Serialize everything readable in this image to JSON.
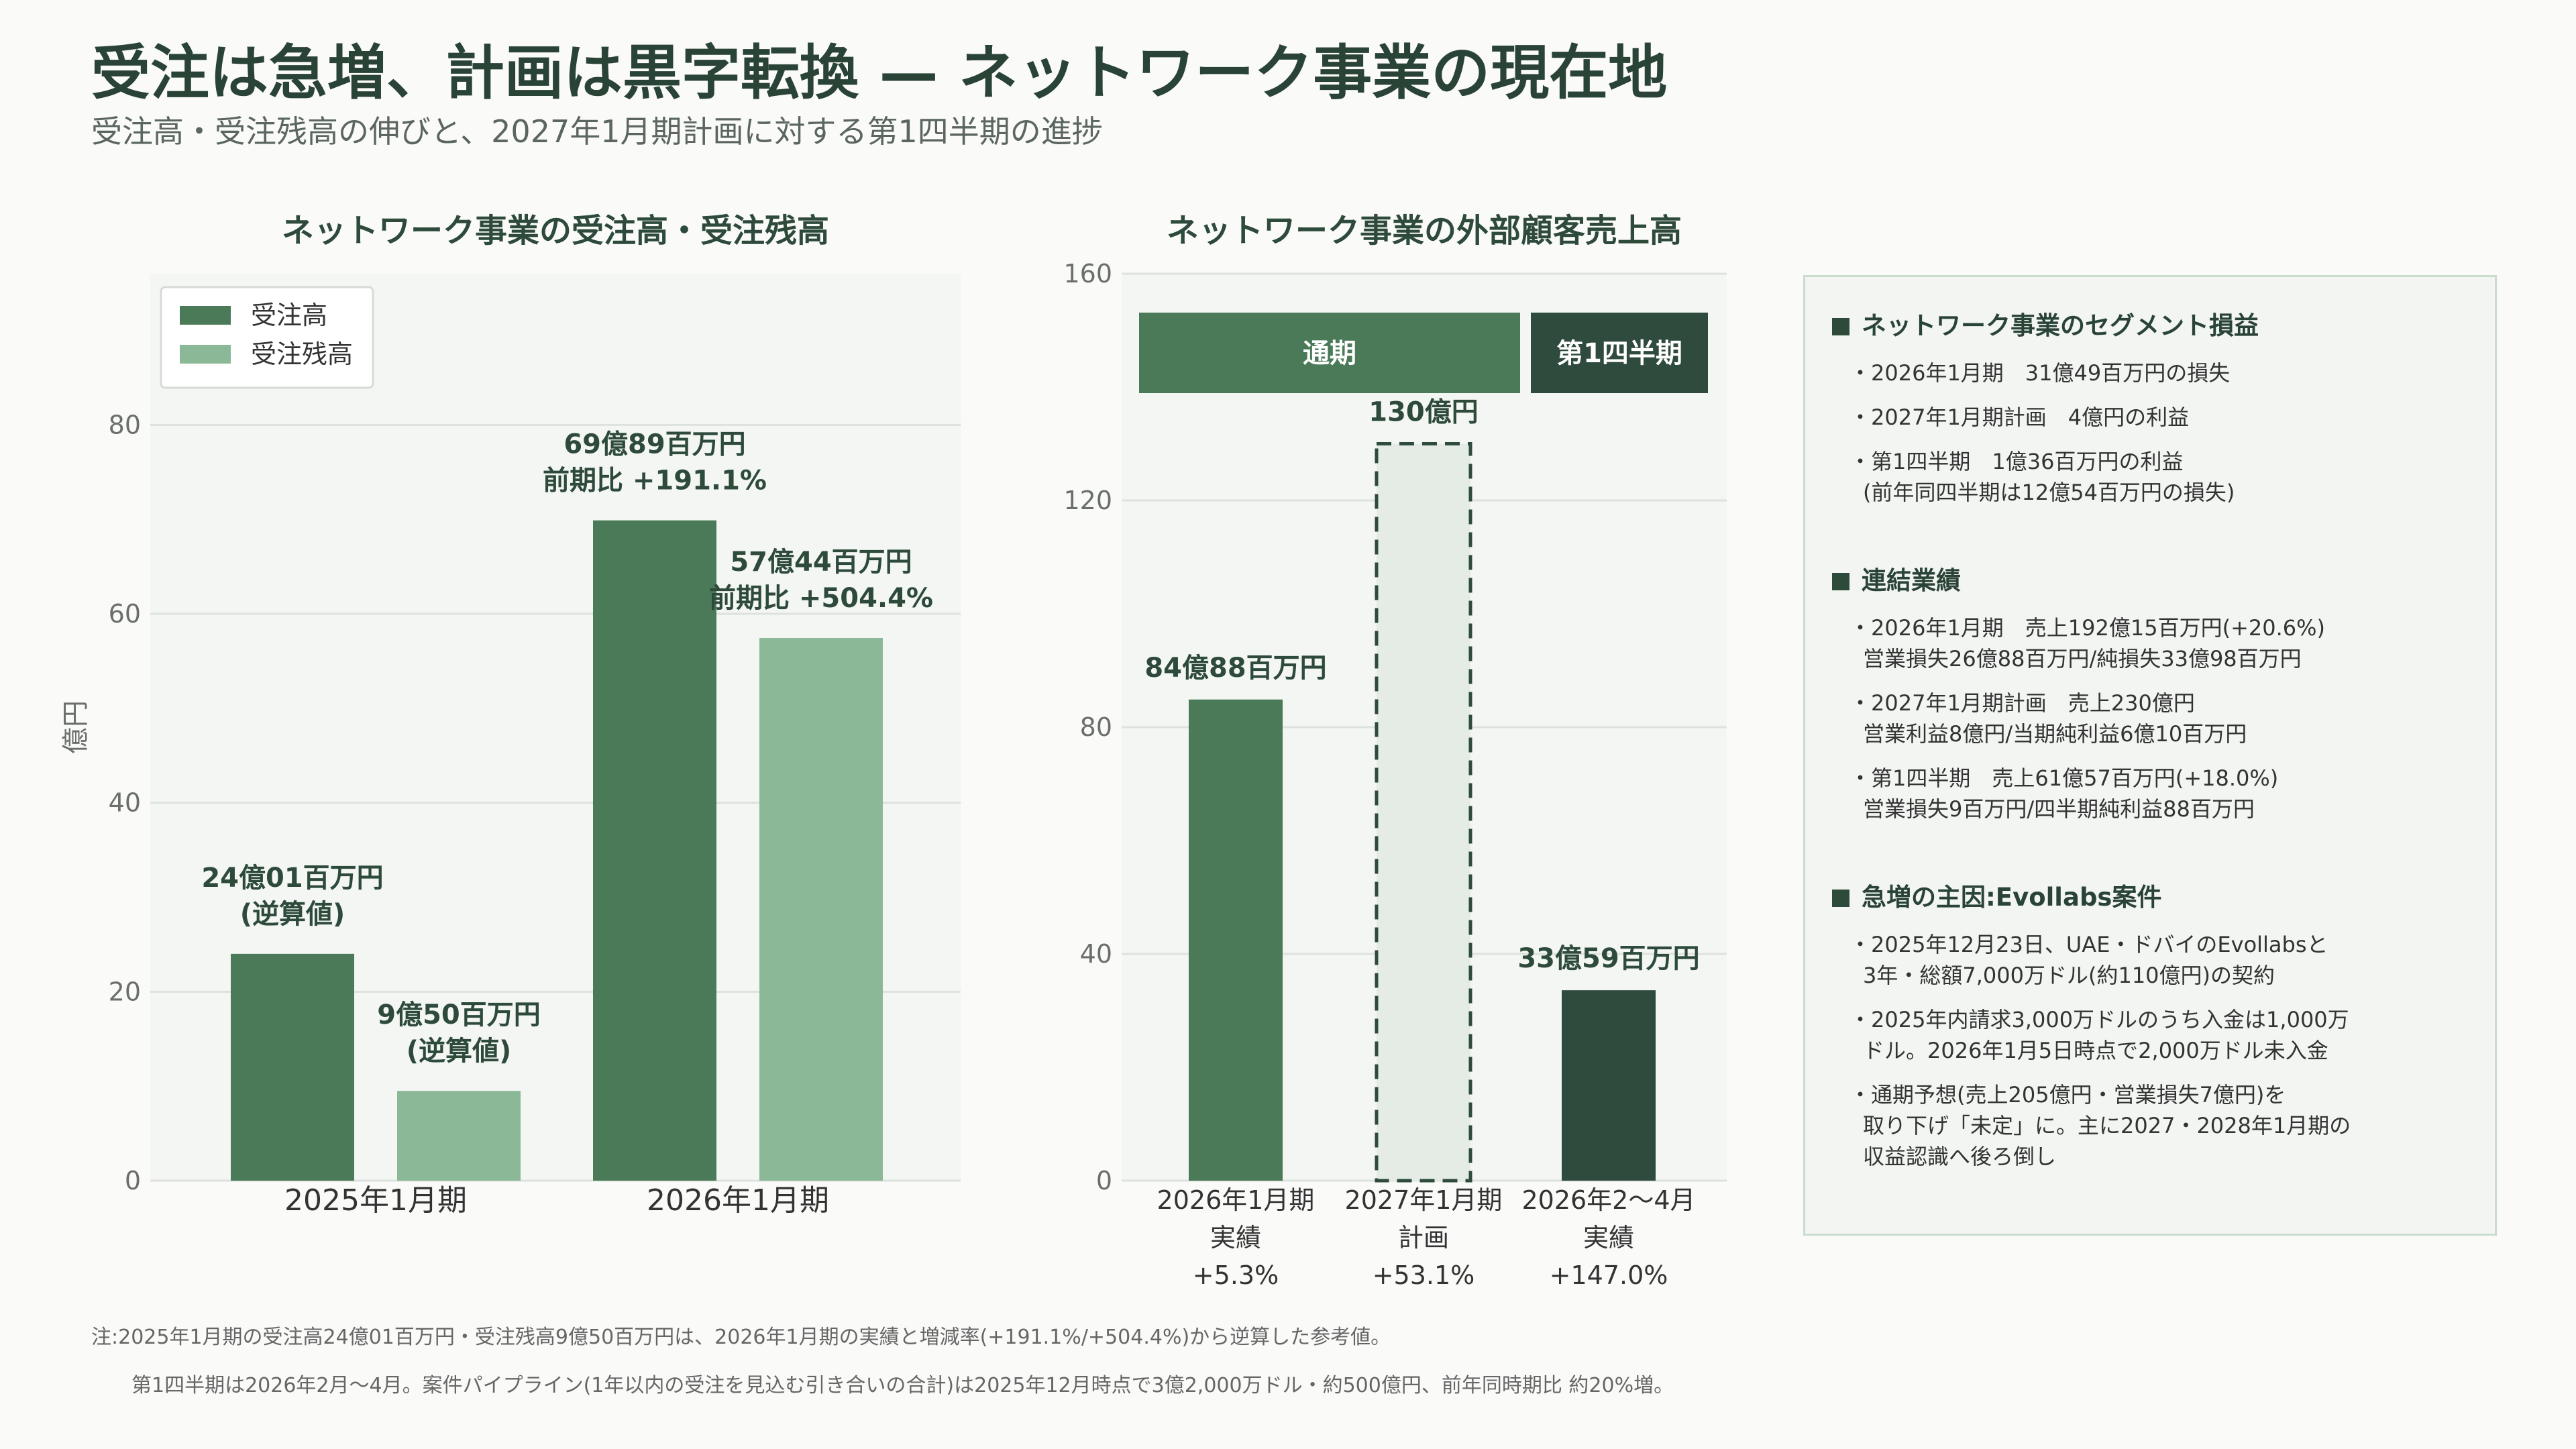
{
  "header": {
    "title": "受注は急増、計画は黒字転換 — ネットワーク事業の現在地",
    "subtitle": "受注高・受注残高の伸びと、2027年1月期計画に対する第1四半期の進捗"
  },
  "colors": {
    "dark": "#2e4b3d",
    "mid": "#4a7a57",
    "light": "#8bb896",
    "plan_fill": "#e4ece5",
    "bg_plot": "#f3f6f3"
  },
  "chart_data": [
    {
      "type": "bar",
      "title": "ネットワーク事業の受注高・受注残高",
      "ylabel": "億円",
      "ylim": [
        0,
        96
      ],
      "yticks": [
        0,
        20,
        40,
        60,
        80
      ],
      "grid": true,
      "legend_position": "top-left",
      "categories": [
        "2025年1月期",
        "2026年1月期"
      ],
      "series": [
        {
          "name": "受注高",
          "color": "#4a7a57",
          "values": [
            24.01,
            69.89
          ],
          "labels": [
            [
              "24億01百万円",
              "(逆算値)"
            ],
            [
              "69億89百万円",
              "前期比 +191.1%"
            ]
          ]
        },
        {
          "name": "受注残高",
          "color": "#8bb896",
          "values": [
            9.5,
            57.44
          ],
          "labels": [
            [
              "9億50百万円",
              "(逆算値)"
            ],
            [
              "57億44百万円",
              "前期比 +504.4%"
            ]
          ]
        }
      ]
    },
    {
      "type": "bar",
      "title": "ネットワーク事業の外部顧客売上高",
      "ylim": [
        0,
        160
      ],
      "yticks": [
        0,
        40,
        80,
        120,
        160
      ],
      "grid": true,
      "bands": [
        {
          "label": "通期",
          "covers": [
            0,
            1
          ],
          "color": "#4a7a57"
        },
        {
          "label": "第1四半期",
          "covers": [
            2,
            2
          ],
          "color": "#2e4b3d"
        }
      ],
      "bars": [
        {
          "category": [
            "2026年1月期",
            "実績",
            "+5.3%"
          ],
          "value": 84.88,
          "label": "84億88百万円",
          "style": "solid",
          "color": "#4a7a57"
        },
        {
          "category": [
            "2027年1月期",
            "計画",
            "+53.1%"
          ],
          "value": 130,
          "label": "130億円",
          "style": "dashed",
          "color": "#e4ece5"
        },
        {
          "category": [
            "2026年2〜4月",
            "実績",
            "+147.0%"
          ],
          "value": 33.59,
          "label": "33億59百万円",
          "style": "solid",
          "color": "#2e4b3d"
        }
      ]
    }
  ],
  "panel": {
    "sections": [
      {
        "heading": "ネットワーク事業のセグメント損益",
        "items": [
          [
            "・2026年1月期　31億49百万円の損失"
          ],
          [
            "・2027年1月期計画　4億円の利益"
          ],
          [
            "・第1四半期　1億36百万円の利益",
            "(前年同四半期は12億54百万円の損失)"
          ]
        ]
      },
      {
        "heading": "連結業績",
        "items": [
          [
            "・2026年1月期　売上192億15百万円(+20.6%)",
            "営業損失26億88百万円/純損失33億98百万円"
          ],
          [
            "・2027年1月期計画　売上230億円",
            "営業利益8億円/当期純利益6億10百万円"
          ],
          [
            "・第1四半期　売上61億57百万円(+18.0%)",
            "営業損失9百万円/四半期純利益88百万円"
          ]
        ]
      },
      {
        "heading": "急増の主因:Evollabs案件",
        "items": [
          [
            "・2025年12月23日、UAE・ドバイのEvollabsと",
            "3年・総額7,000万ドル(約110億円)の契約"
          ],
          [
            "・2025年内請求3,000万ドルのうち入金は1,000万",
            "ドル。2026年1月5日時点で2,000万ドル未入金"
          ],
          [
            "・通期予想(売上205億円・営業損失7億円)を",
            "取り下げ「未定」に。主に2027・2028年1月期の",
            "収益認識へ後ろ倒し"
          ]
        ]
      }
    ]
  },
  "notes": [
    "注:2025年1月期の受注高24億01百万円・受注残高9億50百万円は、2026年1月期の実績と増減率(+191.1%/+504.4%)から逆算した参考値。",
    "第1四半期は2026年2月〜4月。案件パイプライン(1年以内の受注を見込む引き合いの合計)は2025年12月時点で3億2,000万ドル・約500億円、前年同時期比 約20%増。"
  ]
}
